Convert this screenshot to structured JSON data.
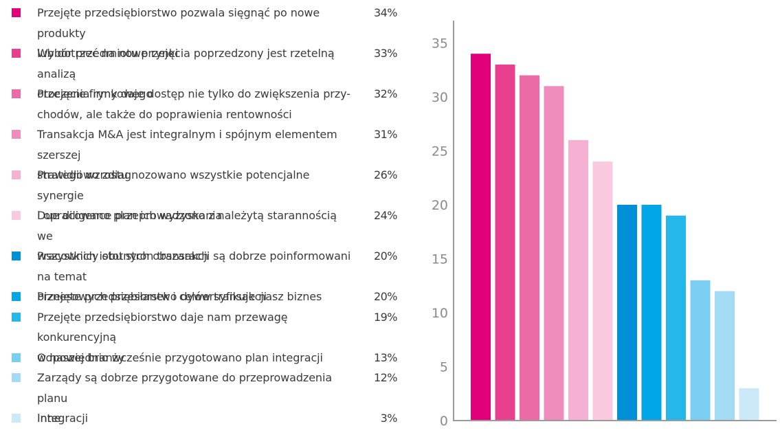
{
  "chart_data": {
    "type": "bar",
    "title": "",
    "xlabel": "",
    "ylabel": "",
    "ylim": [
      0,
      37
    ],
    "yticks": [
      0,
      5,
      10,
      15,
      20,
      25,
      30,
      35
    ],
    "grid": false,
    "legend_position": "left",
    "categories": [
      {
        "label": "Przejęte przedsiębiorstwo pozwala sięgnąć po nowe produkty lub dotrzeć na nowe rynki",
        "lines": [
          "Przejęte przedsiębiorstwo pozwala sięgnąć po nowe produkty",
          "lub dotrzeć na nowe rynki"
        ],
        "value": 34,
        "pct": "34%",
        "color": "#e2007a"
      },
      {
        "label": "Wybór przedmiotu przejęcia poprzedzony jest rzetelną analizą otoczenia rynkowego",
        "lines": [
          "Wybór przedmiotu przejęcia poprzedzony jest rzetelną analizą",
          "otoczenia rynkowego"
        ],
        "value": 33,
        "pct": "33%",
        "color": "#e8408f"
      },
      {
        "label": "Przejęcie firmy daje dostęp nie tylko do zwiększenia przychodów, ale także do poprawienia rentowności",
        "lines": [
          "Przejęcie firmy daje dostęp nie tylko do zwiększenia przy-",
          "chodów, ale także do poprawienia rentowności"
        ],
        "value": 32,
        "pct": "32%",
        "color": "#ec6aa6"
      },
      {
        "label": "Transakcja M&A jest integralnym i spójnym elementem szerszej strategii wzrostu",
        "lines": [
          "Transakcja M&A jest integralnym i spójnym elementem szerszej",
          "strategii wzrostu"
        ],
        "value": 31,
        "pct": "31%",
        "color": "#f08cbb"
      },
      {
        "label": "Prawidłowo zdiagnozowano wszystkie potencjalne synergie i opracowano plan ich wyzyskania",
        "lines": [
          "Prawidłowo zdiagnozowano wszystkie potencjalne synergie",
          "i opracowano plan ich wyzyskania"
        ],
        "value": 26,
        "pct": "26%",
        "color": "#f5b1d2"
      },
      {
        "label": "Due diligence przeprowadzono z należytą starannością we wszystkich istotnych obszarach",
        "lines": [
          "Due diligence przeprowadzono z należytą starannością we",
          "wszystkich istotnych obszarach"
        ],
        "value": 24,
        "pct": "24%",
        "color": "#f8c9df"
      },
      {
        "label": "Pracownicy obu stron transakcji są dobrze poinformowani na temat biznesowych przesłanek i celów transakcji",
        "lines": [
          "Pracownicy obu stron transakcji są dobrze poinformowani na temat",
          "biznesowych przesłanek i celów transakcji"
        ],
        "value": 20,
        "pct": "20%",
        "color": "#0090d8"
      },
      {
        "label": "Przejęte przedsiębiorstwo dywersyfikuje nasz biznes",
        "lines": [
          "Przejęte przedsiębiorstwo dywersyfikuje nasz biznes"
        ],
        "value": 20,
        "pct": "20%",
        "color": "#00a6e6"
      },
      {
        "label": "Przejęte przedsiębiorstwo daje nam przewagę konkurencyjną w naszej branży",
        "lines": [
          "Przejęte przedsiębiorstwo daje nam przewagę konkurencyjną",
          "w naszej branży"
        ],
        "value": 19,
        "pct": "19%",
        "color": "#25b7ea"
      },
      {
        "label": "Odpowiednio wcześnie przygotowano plan integracji",
        "lines": [
          "Odpowiednio wcześnie przygotowano plan integracji"
        ],
        "value": 13,
        "pct": "13%",
        "color": "#7ccdf2"
      },
      {
        "label": "Zarządy są dobrze przygotowane do przeprowadzenia planu integracji",
        "lines": [
          "Zarządy są dobrze przygotowane do przeprowadzenia planu",
          "integracji"
        ],
        "value": 12,
        "pct": "12%",
        "color": "#a3dbf5"
      },
      {
        "label": "Inne",
        "lines": [
          "Inne"
        ],
        "value": 3,
        "pct": "3%",
        "color": "#cbe9f9"
      }
    ]
  }
}
